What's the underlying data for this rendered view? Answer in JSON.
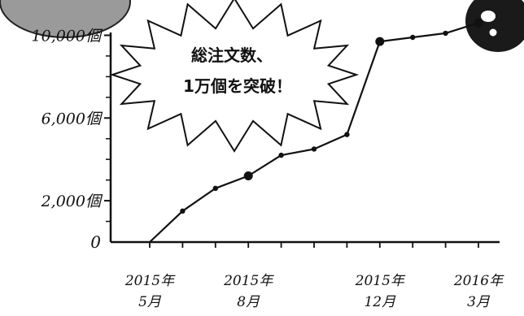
{
  "chart_data": {
    "type": "line",
    "title": "",
    "xlabel": "",
    "ylabel": "",
    "ylim": [
      0,
      11000
    ],
    "grid": false,
    "y_ticks": [
      {
        "value": 0,
        "label": "0"
      },
      {
        "value": 2000,
        "label": "2,000個"
      },
      {
        "value": 6000,
        "label": "6,000個"
      },
      {
        "value": 10000,
        "label": "10,000個"
      }
    ],
    "x_ticks": [
      {
        "index": 0,
        "line1": "2015年",
        "line2": "5月"
      },
      {
        "index": 3,
        "line1": "2015年",
        "line2": "8月"
      },
      {
        "index": 7,
        "line1": "2015年",
        "line2": "12月"
      },
      {
        "index": 10,
        "line1": "2016年",
        "line2": "3月"
      }
    ],
    "series": [
      {
        "values": [
          0,
          1500,
          2600,
          3200,
          4200,
          4500,
          5200,
          9700,
          9900,
          10100,
          10600
        ],
        "highlight": [
          3,
          7,
          10
        ]
      }
    ],
    "callout_lines": [
      "総注文数、",
      "1万個を突破！"
    ]
  },
  "colors": {
    "ink": "#111111",
    "corner_badge": "#9a9a9a",
    "corner_icon": "#1a1a1a"
  }
}
